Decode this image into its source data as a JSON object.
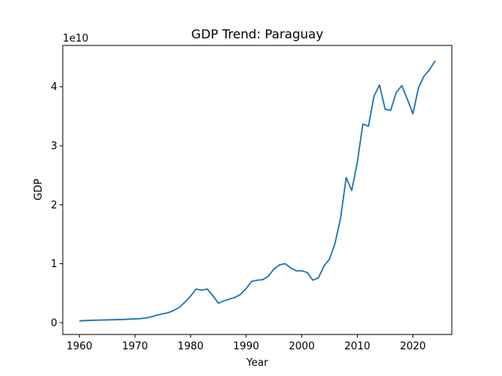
{
  "chart_data": {
    "type": "line",
    "title": "GDP Trend: Paraguay",
    "xlabel": "Year",
    "ylabel": "GDP",
    "y_scale_label": "1e10",
    "xlim": [
      1957,
      2027
    ],
    "ylim": [
      -0.2,
      4.7
    ],
    "y_unit_multiplier": 10000000000.0,
    "x_ticks": [
      1960,
      1970,
      1980,
      1990,
      2000,
      2010,
      2020
    ],
    "x_tick_labels": [
      "1960",
      "1970",
      "1980",
      "1990",
      "2000",
      "2010",
      "2020"
    ],
    "y_ticks": [
      0,
      1,
      2,
      3,
      4
    ],
    "y_tick_labels": [
      "0",
      "1",
      "2",
      "3",
      "4"
    ],
    "grid": false,
    "line_color": "#1f77b4",
    "series": [
      {
        "x": [
          1960,
          1962,
          1964,
          1966,
          1968,
          1970,
          1971,
          1972,
          1973,
          1974,
          1975,
          1976,
          1977,
          1978,
          1979,
          1980,
          1981,
          1982,
          1983,
          1984,
          1985,
          1986,
          1987,
          1988,
          1989,
          1990,
          1991,
          1992,
          1993,
          1994,
          1995,
          1996,
          1997,
          1998,
          1999,
          2000,
          2001,
          2002,
          2003,
          2004,
          2005,
          2006,
          2007,
          2008,
          2009,
          2010,
          2011,
          2012,
          2013,
          2014,
          2015,
          2016,
          2017,
          2018,
          2019,
          2020,
          2021,
          2022,
          2023,
          2024
        ],
        "y": [
          0.03,
          0.04,
          0.045,
          0.05,
          0.055,
          0.065,
          0.07,
          0.08,
          0.1,
          0.13,
          0.15,
          0.17,
          0.21,
          0.26,
          0.35,
          0.45,
          0.57,
          0.55,
          0.57,
          0.46,
          0.33,
          0.37,
          0.4,
          0.43,
          0.48,
          0.58,
          0.7,
          0.72,
          0.73,
          0.79,
          0.91,
          0.98,
          1.0,
          0.93,
          0.88,
          0.88,
          0.85,
          0.72,
          0.76,
          0.96,
          1.08,
          1.35,
          1.78,
          2.46,
          2.24,
          2.72,
          3.37,
          3.33,
          3.84,
          4.03,
          3.62,
          3.6,
          3.9,
          4.02,
          3.79,
          3.54,
          3.98,
          4.18,
          4.29,
          4.44
        ]
      }
    ]
  }
}
